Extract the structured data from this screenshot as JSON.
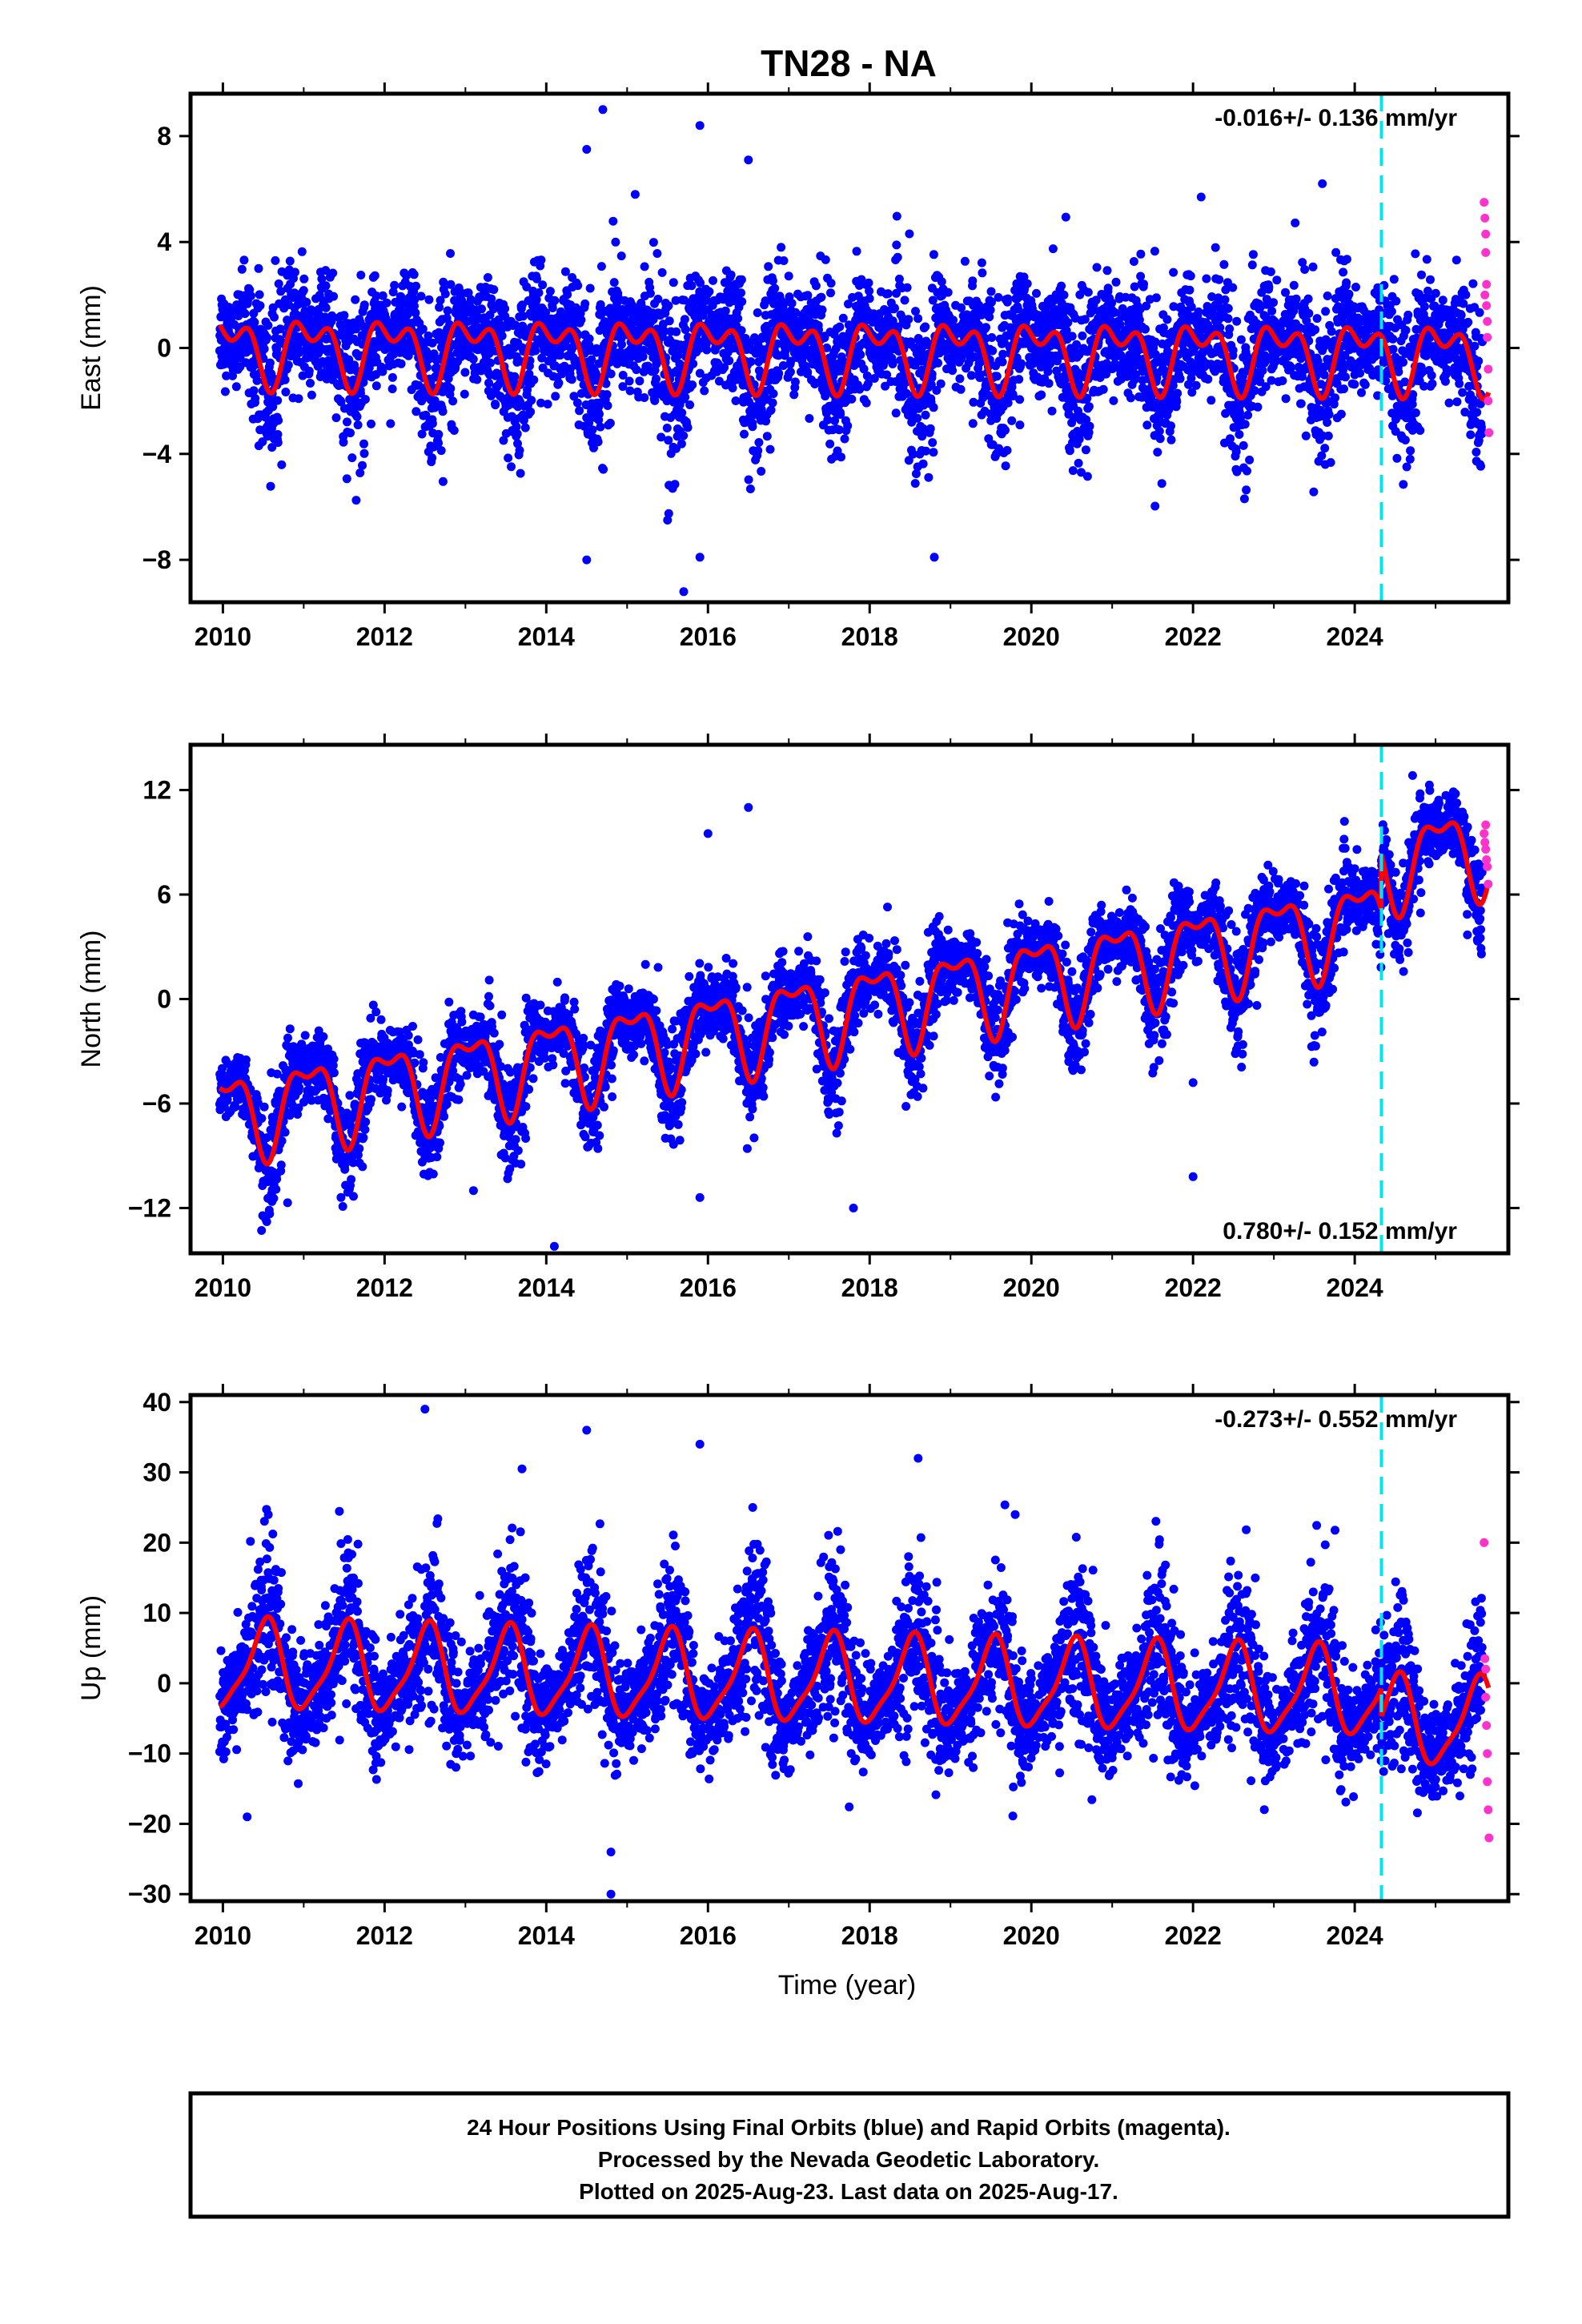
{
  "chart_data": {
    "type": "scatter",
    "title": "TN28 - NA",
    "xlabel": "Time (year)",
    "xlim": [
      2009.6,
      2025.9
    ],
    "xticks": [
      2010,
      2012,
      2014,
      2016,
      2018,
      2020,
      2022,
      2024
    ],
    "equipment_change_year": 2024.33,
    "final_color": "#0000ff",
    "rapid_color": "#ff33cc",
    "model_color": "#ff0000",
    "event_color": "#00e5ee",
    "panels": [
      {
        "component": "East",
        "ylabel": "East (mm)",
        "ylim": [
          -9.6,
          9.6
        ],
        "yticks": [
          8,
          4,
          0,
          -4,
          -8
        ],
        "ytick_labels": [
          "8",
          "4",
          "0",
          "−4",
          "−8"
        ],
        "rate_text": "-0.016+/- 0.136 mm/yr",
        "rate_position": "top-right",
        "model": {
          "offset": 0.0,
          "trend": -0.016,
          "annual": 1.0,
          "semiannual": 0.7,
          "phase_annual": 0.08,
          "phase_semi": 0.35
        },
        "noise_sd": 1.2,
        "outliers": [
          [
            2014.7,
            9.0
          ],
          [
            2015.9,
            8.4
          ],
          [
            2016.5,
            7.1
          ],
          [
            2014.5,
            7.5
          ],
          [
            2015.1,
            5.8
          ],
          [
            2022.1,
            5.7
          ],
          [
            2023.6,
            6.2
          ],
          [
            2015.5,
            -6.5
          ],
          [
            2014.5,
            -8.0
          ],
          [
            2015.9,
            -7.9
          ],
          [
            2015.7,
            -9.2
          ],
          [
            2018.8,
            -7.9
          ]
        ],
        "rapid_points": [
          [
            2025.6,
            5.5
          ],
          [
            2025.61,
            4.9
          ],
          [
            2025.62,
            4.3
          ],
          [
            2025.62,
            3.6
          ],
          [
            2025.63,
            2.4
          ],
          [
            2025.63,
            1.6
          ],
          [
            2025.64,
            1.0
          ],
          [
            2025.64,
            0.4
          ],
          [
            2025.65,
            -0.8
          ],
          [
            2025.65,
            -2.0
          ],
          [
            2025.66,
            -3.2
          ],
          [
            2025.61,
            2.0
          ]
        ]
      },
      {
        "component": "North",
        "ylabel": "North (mm)",
        "ylim": [
          -14.6,
          14.6
        ],
        "yticks": [
          12,
          6,
          0,
          -6,
          -12
        ],
        "ytick_labels": [
          "12",
          "6",
          "0",
          "−6",
          "−12"
        ],
        "rate_text": "0.780+/- 0.152 mm/yr",
        "rate_position": "bottom-right",
        "model": {
          "offset": -6.6,
          "trend": 0.78,
          "annual": 2.3,
          "semiannual": 1.0,
          "phase_annual": 0.05,
          "phase_semi": 0.3,
          "step_year": 2024.33,
          "step_mm": 3.2
        },
        "noise_sd": 1.2,
        "outliers": [
          [
            2016.5,
            11.0
          ],
          [
            2016.0,
            9.5
          ],
          [
            2022.0,
            -4.8
          ],
          [
            2022.0,
            -10.2
          ],
          [
            2017.8,
            -12.0
          ],
          [
            2014.1,
            -14.2
          ],
          [
            2013.1,
            -11.0
          ],
          [
            2010.8,
            -11.7
          ],
          [
            2015.9,
            -11.4
          ]
        ],
        "rapid_points": [
          [
            2025.6,
            9.5
          ],
          [
            2025.61,
            9.0
          ],
          [
            2025.62,
            8.6
          ],
          [
            2025.63,
            8.0
          ],
          [
            2025.64,
            7.6
          ],
          [
            2025.65,
            6.6
          ],
          [
            2025.62,
            10.0
          ]
        ]
      },
      {
        "component": "Up",
        "ylabel": "Up (mm)",
        "ylim": [
          -31,
          41
        ],
        "yticks": [
          40,
          30,
          20,
          10,
          0,
          -10,
          -20,
          -30
        ],
        "ytick_labels": [
          "40",
          "30",
          "20",
          "10",
          "0",
          "−10",
          "−20",
          "−30"
        ],
        "rate_text": "-0.273+/- 0.552 mm/yr",
        "rate_position": "top-right",
        "model": {
          "offset": 2.5,
          "trend": -0.273,
          "annual": 6.0,
          "semiannual": 1.5,
          "phase_annual": 0.52,
          "phase_semi": 0.1,
          "step_year": 2024.33,
          "step_mm": -4.0
        },
        "noise_sd": 4.5,
        "outliers": [
          [
            2012.5,
            39.0
          ],
          [
            2014.5,
            36.0
          ],
          [
            2015.9,
            34.0
          ],
          [
            2013.7,
            30.5
          ],
          [
            2018.6,
            32.0
          ],
          [
            2019.8,
            24.0
          ],
          [
            2014.8,
            -24.0
          ],
          [
            2014.8,
            -30.0
          ],
          [
            2010.3,
            -19.0
          ]
        ],
        "rapid_points": [
          [
            2025.6,
            20.0
          ],
          [
            2025.61,
            3.5
          ],
          [
            2025.62,
            2.0
          ],
          [
            2025.62,
            -2.0
          ],
          [
            2025.63,
            -6.0
          ],
          [
            2025.64,
            -10.0
          ],
          [
            2025.64,
            -14.0
          ],
          [
            2025.65,
            -18.0
          ],
          [
            2025.66,
            -22.0
          ]
        ]
      }
    ]
  },
  "footer": {
    "line1": "24 Hour Positions Using Final Orbits (blue) and Rapid Orbits (magenta).",
    "line2": "Processed by the Nevada Geodetic Laboratory.",
    "line3": "Plotted on 2025-Aug-23. Last data on 2025-Aug-17."
  }
}
